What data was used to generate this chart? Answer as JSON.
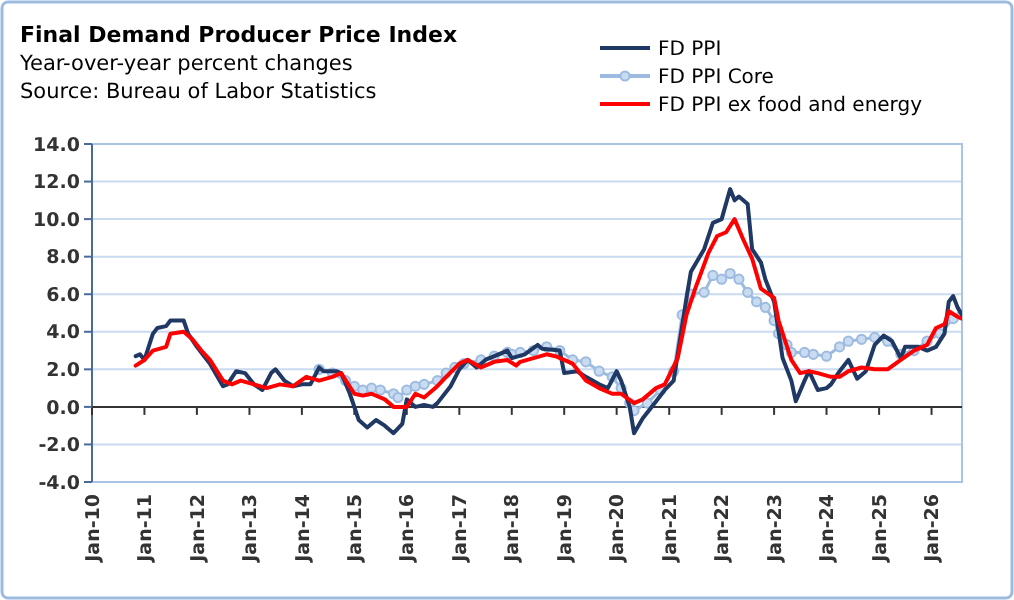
{
  "chart_data": {
    "type": "line",
    "title": "Final Demand Producer Price Index",
    "subtitle": "Year-over-year percent changes",
    "annotations": [
      "Source: Bureau of Labor Statistics"
    ],
    "xlim": [
      "2010-01",
      "2026-08"
    ],
    "xticks": [
      {
        "value": "2010-01",
        "label": "Jan-10"
      },
      {
        "value": "2011-01",
        "label": "Jan-11"
      },
      {
        "value": "2012-01",
        "label": "Jan-12"
      },
      {
        "value": "2013-01",
        "label": "Jan-13"
      },
      {
        "value": "2014-01",
        "label": "Jan-14"
      },
      {
        "value": "2015-01",
        "label": "Jan-15"
      },
      {
        "value": "2016-01",
        "label": "Jan-16"
      },
      {
        "value": "2017-01",
        "label": "Jan-17"
      },
      {
        "value": "2018-01",
        "label": "Jan-18"
      },
      {
        "value": "2019-01",
        "label": "Jan-19"
      },
      {
        "value": "2020-01",
        "label": "Jan-20"
      },
      {
        "value": "2021-01",
        "label": "Jan-21"
      },
      {
        "value": "2022-01",
        "label": "Jan-22"
      },
      {
        "value": "2023-01",
        "label": "Jan-23"
      },
      {
        "value": "2024-01",
        "label": "Jan-24"
      },
      {
        "value": "2025-01",
        "label": "Jan-25"
      },
      {
        "value": "2026-01",
        "label": "Jan-26"
      }
    ],
    "ylim": [
      -4,
      14
    ],
    "yticks": [
      {
        "value": -4,
        "label": "-4.0"
      },
      {
        "value": -2,
        "label": "-2.0"
      },
      {
        "value": 0,
        "label": "0.0"
      },
      {
        "value": 2,
        "label": "2.0"
      },
      {
        "value": 4,
        "label": "4.0"
      },
      {
        "value": 6,
        "label": "6.0"
      },
      {
        "value": 8,
        "label": "8.0"
      },
      {
        "value": 10,
        "label": "10.0"
      },
      {
        "value": 12,
        "label": "12.0"
      },
      {
        "value": 14,
        "label": "14.0"
      }
    ],
    "grid": "y",
    "legend": "top right",
    "line_style": "solid",
    "series": [
      {
        "name": "FD PPI",
        "color": "#1f3864",
        "marker": "none",
        "x": [
          "2010-11",
          "2010-12",
          "2011-01",
          "2011-03",
          "2011-04",
          "2011-06",
          "2011-07",
          "2011-10",
          "2011-11",
          "2012-01",
          "2012-04",
          "2012-07",
          "2012-08",
          "2012-10",
          "2012-12",
          "2013-02",
          "2013-04",
          "2013-06",
          "2013-07",
          "2013-09",
          "2013-11",
          "2014-01",
          "2014-03",
          "2014-05",
          "2014-06",
          "2014-09",
          "2014-10",
          "2014-12",
          "2015-02",
          "2015-04",
          "2015-06",
          "2015-08",
          "2015-10",
          "2015-12",
          "2016-01",
          "2016-03",
          "2016-05",
          "2016-07",
          "2016-08",
          "2016-11",
          "2017-01",
          "2017-03",
          "2017-05",
          "2017-07",
          "2017-10",
          "2017-12",
          "2018-01",
          "2018-04",
          "2018-07",
          "2018-08",
          "2018-12",
          "2019-01",
          "2019-04",
          "2019-06",
          "2019-09",
          "2019-11",
          "2020-01",
          "2020-02",
          "2020-04",
          "2020-05",
          "2020-07",
          "2020-09",
          "2020-12",
          "2021-02",
          "2021-03",
          "2021-05",
          "2021-06",
          "2021-09",
          "2021-11",
          "2022-01",
          "2022-03",
          "2022-04",
          "2022-05",
          "2022-07",
          "2022-08",
          "2022-10",
          "2022-11",
          "2023-01",
          "2023-03",
          "2023-05",
          "2023-06",
          "2023-08",
          "2023-09",
          "2023-11",
          "2024-01",
          "2024-02",
          "2024-04",
          "2024-06",
          "2024-08",
          "2024-10",
          "2024-12",
          "2025-02",
          "2025-04",
          "2025-06",
          "2025-07",
          "2025-10",
          "2025-12",
          "2026-02",
          "2026-04",
          "2026-05",
          "2026-06",
          "2026-07",
          "2026-08"
        ],
        "values": [
          2.7,
          2.8,
          2.5,
          3.9,
          4.2,
          4.3,
          4.6,
          4.6,
          3.9,
          3.2,
          2.3,
          1.1,
          1.2,
          1.9,
          1.8,
          1.2,
          0.9,
          1.8,
          2.0,
          1.4,
          1.1,
          1.2,
          1.2,
          2.1,
          1.9,
          1.9,
          1.8,
          0.7,
          -0.7,
          -1.1,
          -0.7,
          -1.0,
          -1.4,
          -0.9,
          0.4,
          0.0,
          0.1,
          0.0,
          0.2,
          1.1,
          2.0,
          2.5,
          2.1,
          2.5,
          2.8,
          3.0,
          2.6,
          2.8,
          3.3,
          3.1,
          3.0,
          1.8,
          1.9,
          1.6,
          1.2,
          1.0,
          1.9,
          1.4,
          0.0,
          -1.4,
          -0.6,
          0.0,
          0.9,
          1.4,
          2.8,
          5.8,
          7.2,
          8.4,
          9.8,
          10.0,
          11.6,
          11.0,
          11.2,
          10.8,
          8.4,
          7.7,
          6.8,
          5.6,
          2.6,
          1.4,
          0.3,
          1.4,
          1.9,
          0.9,
          1.0,
          1.2,
          1.9,
          2.5,
          1.5,
          1.9,
          3.3,
          3.8,
          3.5,
          2.6,
          3.2,
          3.2,
          3.0,
          3.2,
          3.9,
          5.6,
          5.9,
          5.3,
          4.9
        ]
      },
      {
        "name": "FD PPI Core",
        "color": "#9dbbe0",
        "marker": "circle",
        "x": [
          "2014-05",
          "2014-08",
          "2014-11",
          "2015-01",
          "2015-03",
          "2015-05",
          "2015-07",
          "2015-10",
          "2015-11",
          "2016-01",
          "2016-03",
          "2016-05",
          "2016-08",
          "2016-10",
          "2016-12",
          "2017-02",
          "2017-06",
          "2017-09",
          "2017-12",
          "2018-01",
          "2018-03",
          "2018-06",
          "2018-09",
          "2018-12",
          "2019-03",
          "2019-06",
          "2019-09",
          "2019-12",
          "2020-02",
          "2020-04",
          "2020-05",
          "2020-08",
          "2020-11",
          "2021-02",
          "2021-04",
          "2021-06",
          "2021-09",
          "2021-11",
          "2022-01",
          "2022-03",
          "2022-05",
          "2022-07",
          "2022-09",
          "2022-11",
          "2023-01",
          "2023-02",
          "2023-04",
          "2023-05",
          "2023-08",
          "2023-10",
          "2024-01",
          "2024-04",
          "2024-06",
          "2024-09",
          "2024-12",
          "2025-03",
          "2025-06",
          "2025-09",
          "2025-12",
          "2026-03",
          "2026-06",
          "2026-08"
        ],
        "values": [
          2.0,
          1.8,
          1.4,
          1.1,
          0.9,
          1.0,
          0.9,
          0.7,
          0.5,
          0.9,
          1.1,
          1.2,
          1.4,
          1.8,
          2.1,
          2.3,
          2.5,
          2.7,
          2.9,
          2.8,
          2.9,
          3.0,
          3.2,
          3.0,
          2.5,
          2.4,
          1.9,
          1.6,
          1.0,
          0.2,
          -0.2,
          0.2,
          0.9,
          1.9,
          4.9,
          6.0,
          6.1,
          7.0,
          6.8,
          7.1,
          6.8,
          6.1,
          5.6,
          5.3,
          4.6,
          3.9,
          3.3,
          2.9,
          2.9,
          2.8,
          2.7,
          3.2,
          3.5,
          3.6,
          3.7,
          3.5,
          2.8,
          3.0,
          3.5,
          3.9,
          4.7,
          4.9
        ]
      },
      {
        "name": "FD PPI ex food and energy",
        "color": "#ff0000",
        "marker": "none",
        "x": [
          "2010-11",
          "2011-01",
          "2011-03",
          "2011-06",
          "2011-07",
          "2011-10",
          "2011-12",
          "2012-02",
          "2012-04",
          "2012-07",
          "2012-09",
          "2012-11",
          "2013-02",
          "2013-05",
          "2013-08",
          "2013-11",
          "2014-02",
          "2014-05",
          "2014-08",
          "2014-10",
          "2015-01",
          "2015-03",
          "2015-05",
          "2015-08",
          "2015-10",
          "2016-01",
          "2016-03",
          "2016-05",
          "2016-08",
          "2016-10",
          "2017-01",
          "2017-03",
          "2017-06",
          "2017-09",
          "2017-12",
          "2018-02",
          "2018-03",
          "2018-06",
          "2018-09",
          "2018-11",
          "2019-03",
          "2019-06",
          "2019-09",
          "2019-12",
          "2020-02",
          "2020-05",
          "2020-07",
          "2020-10",
          "2020-12",
          "2021-03",
          "2021-05",
          "2021-07",
          "2021-10",
          "2021-12",
          "2022-02",
          "2022-04",
          "2022-06",
          "2022-08",
          "2022-10",
          "2023-01",
          "2023-02",
          "2023-05",
          "2023-07",
          "2023-09",
          "2023-11",
          "2024-02",
          "2024-04",
          "2024-06",
          "2024-09",
          "2024-12",
          "2025-03",
          "2025-06",
          "2025-09",
          "2025-12",
          "2026-02",
          "2026-04",
          "2026-05",
          "2026-07",
          "2026-08"
        ],
        "values": [
          2.2,
          2.5,
          3.0,
          3.2,
          3.9,
          4.0,
          3.6,
          3.0,
          2.5,
          1.4,
          1.2,
          1.4,
          1.2,
          1.0,
          1.2,
          1.1,
          1.6,
          1.4,
          1.6,
          1.8,
          0.7,
          0.6,
          0.7,
          0.4,
          0.0,
          0.0,
          0.7,
          0.5,
          1.1,
          1.6,
          2.3,
          2.5,
          2.1,
          2.4,
          2.5,
          2.2,
          2.4,
          2.6,
          2.8,
          2.7,
          2.3,
          1.4,
          1.0,
          0.7,
          0.7,
          0.2,
          0.4,
          1.0,
          1.2,
          2.6,
          4.9,
          6.3,
          8.2,
          9.1,
          9.3,
          10.0,
          8.9,
          7.9,
          6.3,
          5.8,
          4.6,
          2.5,
          1.8,
          1.9,
          1.8,
          1.6,
          1.6,
          1.9,
          2.1,
          2.0,
          2.0,
          2.5,
          3.0,
          3.3,
          4.2,
          4.4,
          5.1,
          4.8,
          4.7
        ]
      }
    ]
  }
}
